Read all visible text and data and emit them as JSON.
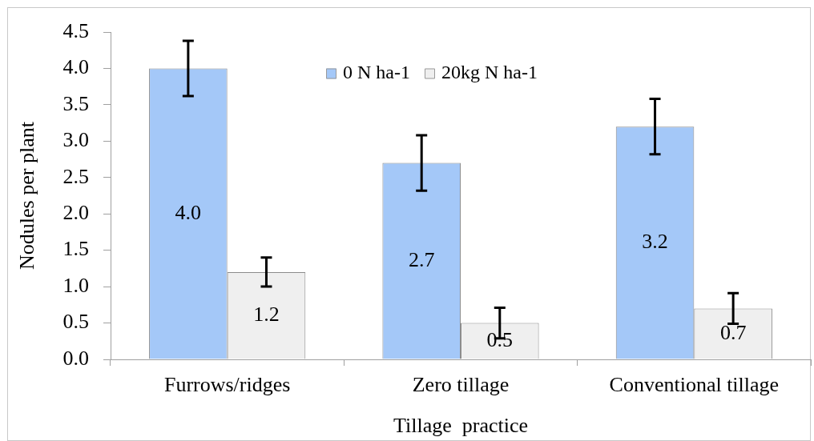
{
  "chart_data": {
    "type": "bar",
    "xlabel": "Tillage  practice",
    "ylabel": "Nodules per plant",
    "categories": [
      "Furrows/ridges",
      "Zero tillage",
      "Conventional tillage"
    ],
    "series": [
      {
        "name": "0 N ha-1",
        "color": "#a4c8f8",
        "values": [
          4.0,
          2.7,
          3.2
        ],
        "errors": [
          0.38,
          0.38,
          0.38
        ],
        "value_labels": [
          "4.0",
          "2.7",
          "3.2"
        ]
      },
      {
        "name": "20kg N ha-1",
        "color": "#efefef",
        "values": [
          1.2,
          0.5,
          0.7
        ],
        "errors": [
          0.2,
          0.21,
          0.21
        ],
        "value_labels": [
          "1.2",
          "0.5",
          "0.7"
        ]
      }
    ],
    "ylim": [
      0,
      4.5
    ],
    "yticks": [
      {
        "value": 0,
        "label": "0.0"
      },
      0.5,
      {
        "value": 1,
        "label": "1.0"
      },
      1.5,
      {
        "value": 2,
        "label": "2.0"
      },
      2.5,
      {
        "value": 3,
        "label": "3.0"
      },
      3.5,
      {
        "value": 4,
        "label": "4.0"
      },
      4.5
    ],
    "grid": false,
    "legend": "top"
  }
}
